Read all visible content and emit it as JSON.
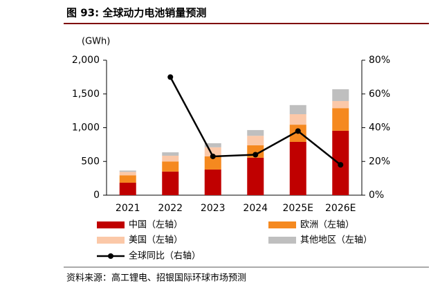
{
  "chart_data": {
    "type": "bar",
    "title": "图 93: 全球动力电池销量预测",
    "y_label": "(GWh)",
    "source": "资料来源：高工锂电、招银国际环球市场预测",
    "categories": [
      "2021",
      "2022",
      "2023",
      "2024",
      "2025E",
      "2026E"
    ],
    "series": [
      {
        "name": "中国（左轴）",
        "color": "#c00000",
        "values": [
          185,
          350,
          380,
          555,
          790,
          955
        ]
      },
      {
        "name": "欧洲（左轴）",
        "color": "#f5891f",
        "values": [
          110,
          150,
          195,
          185,
          255,
          335
        ]
      },
      {
        "name": "美国（左轴）",
        "color": "#fbc8a8",
        "values": [
          50,
          85,
          135,
          140,
          155,
          105
        ]
      },
      {
        "name": "其他地区（左轴）",
        "color": "#bfbfbf",
        "values": [
          20,
          50,
          60,
          85,
          135,
          175
        ]
      },
      {
        "name": "全球同比（右轴）",
        "color": "#000000",
        "type": "line",
        "axis": "y2",
        "values": [
          null,
          70,
          23,
          24,
          38,
          18
        ]
      }
    ],
    "ylim": [
      0,
      2000
    ],
    "yticks": [
      0,
      500,
      {
        "value": 1000,
        "label": "1,000"
      },
      {
        "value": 1500,
        "label": "1,500"
      },
      {
        "value": 2000,
        "label": "2,000"
      }
    ],
    "y2lim": [
      0,
      80
    ],
    "y2ticks": [
      {
        "value": 0,
        "label": "0%"
      },
      {
        "value": 20,
        "label": "20%"
      },
      {
        "value": 40,
        "label": "40%"
      },
      {
        "value": 60,
        "label": "60%"
      },
      {
        "value": 80,
        "label": "80%"
      }
    ]
  }
}
